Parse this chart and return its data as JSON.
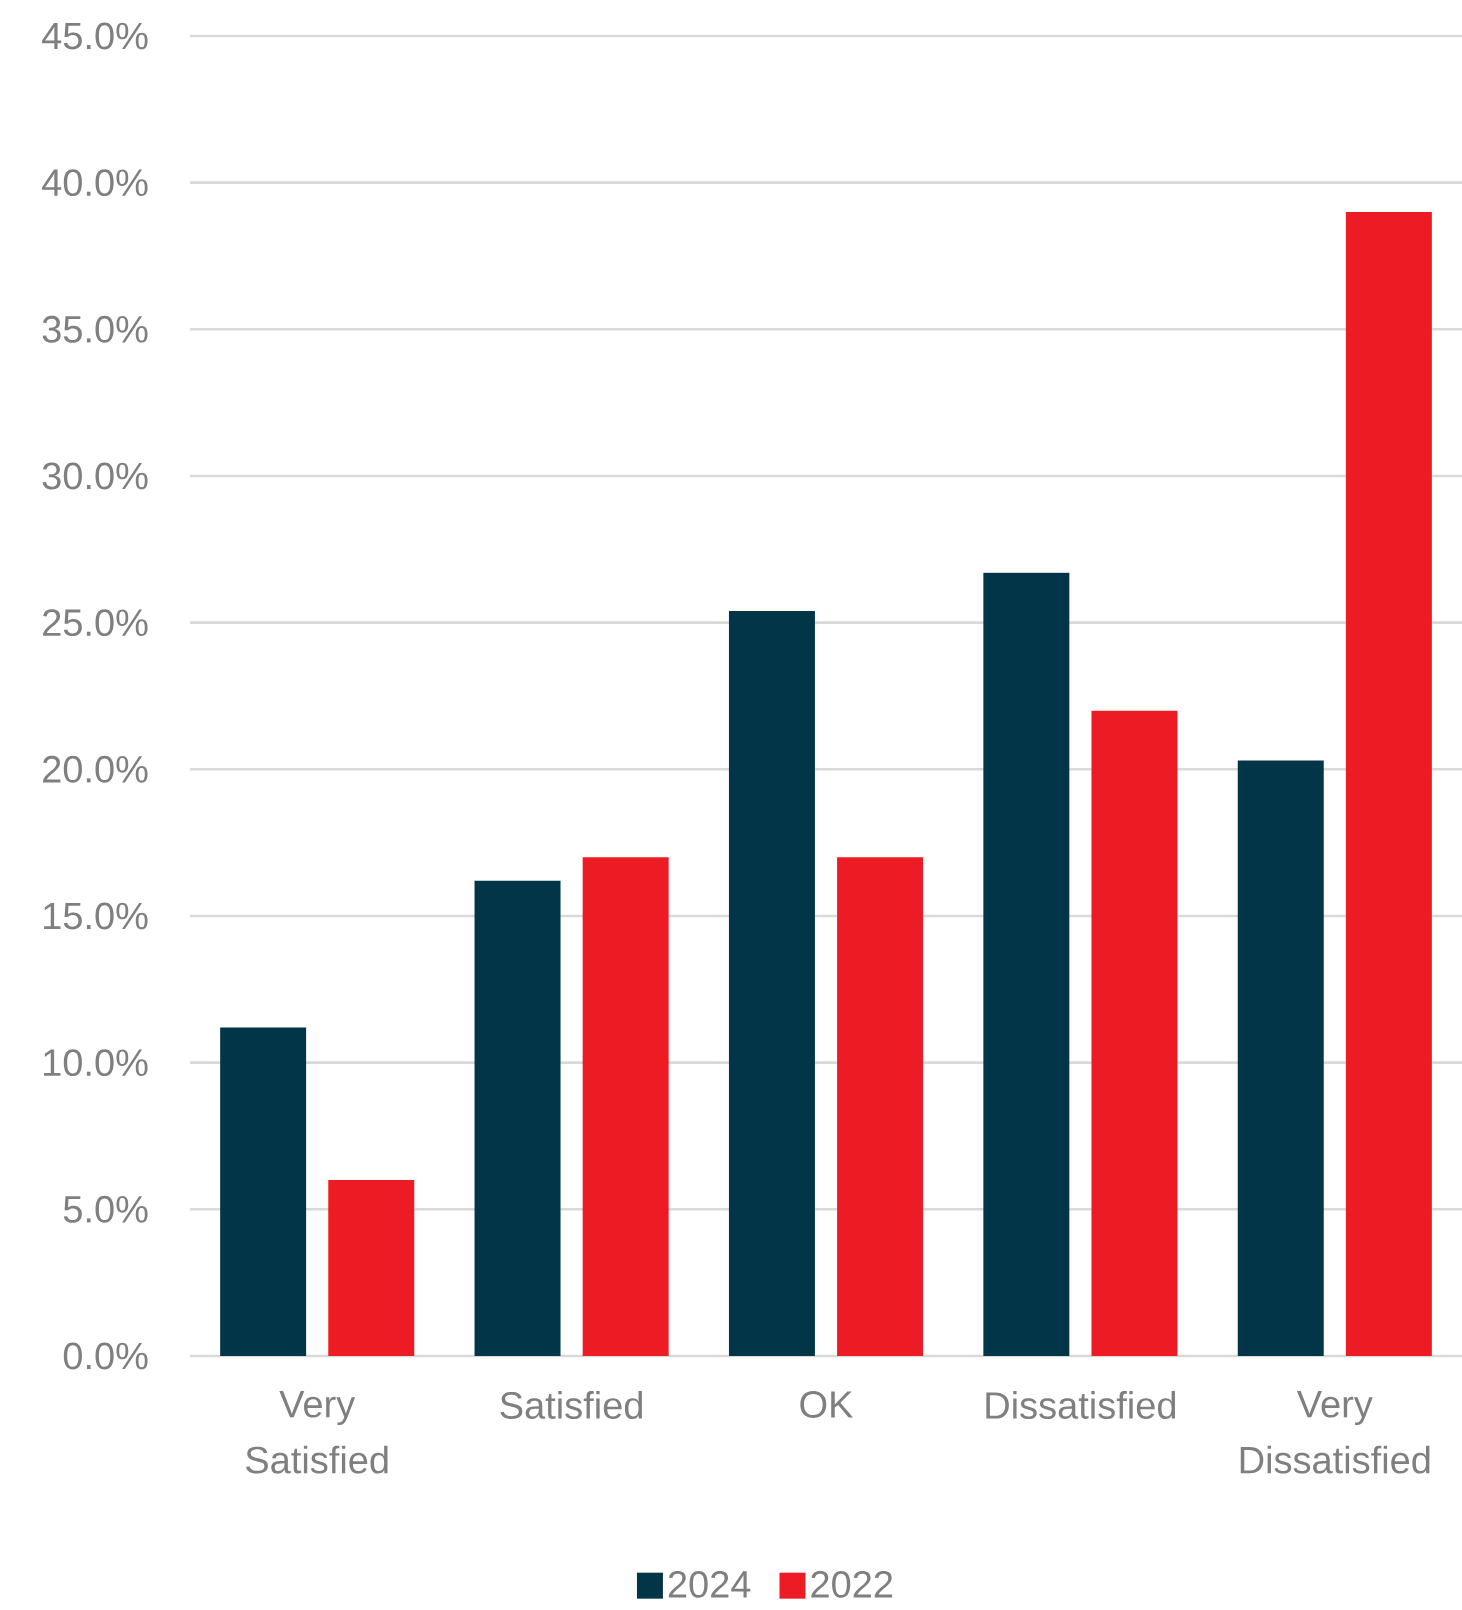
{
  "chart_data": {
    "type": "bar",
    "categories": [
      "Very Satisfied",
      "Satisfied",
      "OK",
      "Dissatisfied",
      "Very Dissatisfied"
    ],
    "series": [
      {
        "name": "2024",
        "color": "#033549",
        "values": [
          11.2,
          16.2,
          25.4,
          26.7,
          20.3
        ]
      },
      {
        "name": "2022",
        "color": "#ed1c24",
        "values": [
          6.0,
          17.0,
          17.0,
          22.0,
          39.0
        ]
      }
    ],
    "ylim": [
      0,
      45
    ],
    "yticks": [
      {
        "value": 0,
        "label": "0.0%"
      },
      {
        "value": 5,
        "label": "5.0%"
      },
      {
        "value": 10,
        "label": "10.0%"
      },
      {
        "value": 15,
        "label": "15.0%"
      },
      {
        "value": 20,
        "label": "20.0%"
      },
      {
        "value": 25,
        "label": "25.0%"
      },
      {
        "value": 30,
        "label": "30.0%"
      },
      {
        "value": 35,
        "label": "35.0%"
      },
      {
        "value": 40,
        "label": "40.0%"
      },
      {
        "value": 45,
        "label": "45.0%"
      }
    ],
    "grid": "y",
    "legend": "bottom"
  }
}
